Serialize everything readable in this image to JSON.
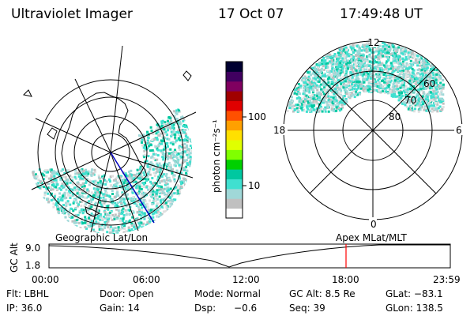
{
  "header": {
    "title": "Ultraviolet Imager",
    "date": "17 Oct 07",
    "time": "17:49:48 UT"
  },
  "colorbar": {
    "label": "photon cm⁻²s⁻¹",
    "ticks": [
      "100",
      "10"
    ],
    "colors": [
      "#ffffff",
      "#c0c0c0",
      "#a0d8d8",
      "#40e0d0",
      "#00c8a0",
      "#00d000",
      "#80ff00",
      "#e0ff00",
      "#ffe000",
      "#ffa000",
      "#ff5000",
      "#e00000",
      "#a00000",
      "#800060",
      "#400060",
      "#000030"
    ]
  },
  "polar_grid": {
    "hour_labels": {
      "top": "12",
      "left": "18",
      "right": "6",
      "bottom": "0"
    },
    "lat_labels": [
      "60",
      "70",
      "80"
    ]
  },
  "timeline": {
    "left_title": "Geographic Lat/Lon",
    "right_title": "Apex  MLat/MLT",
    "axis_label": "GC Alt",
    "y_ticks": [
      "9.0",
      "1.8"
    ],
    "x_ticks": [
      "00:00",
      "06:00",
      "12:00",
      "18:00",
      "23:59"
    ],
    "marker_time": "17:49:48"
  },
  "footer": {
    "row1": [
      "Flt: LBHL",
      "Door: Open",
      "Mode: Normal",
      "GC Alt: 8.5 Re",
      "GLat: −83.1"
    ],
    "row2": [
      "IP: 36.0",
      "Gain: 14",
      "Dsp:      −0.6",
      "Seq: 39",
      "GLon: 138.5"
    ]
  },
  "accent_colors": {
    "marker": "#ff0000",
    "meridian": "#0000c0"
  }
}
